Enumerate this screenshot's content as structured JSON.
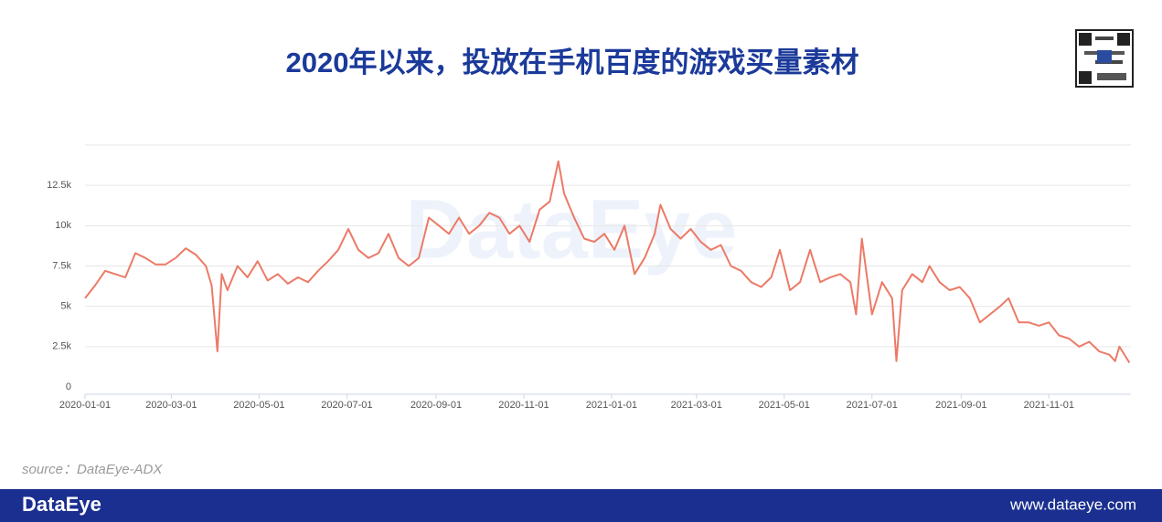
{
  "chart_data": {
    "type": "line",
    "title": "2020年以来，投放在手机百度的游戏买量素材",
    "watermark": "DataEye",
    "color": "#ec7a67",
    "x": [
      "2020-01-01",
      "2020-01-08",
      "2020-01-15",
      "2020-01-22",
      "2020-01-29",
      "2020-02-05",
      "2020-02-12",
      "2020-02-19",
      "2020-02-26",
      "2020-03-04",
      "2020-03-11",
      "2020-03-18",
      "2020-03-25",
      "2020-03-29",
      "2020-04-02",
      "2020-04-05",
      "2020-04-09",
      "2020-04-16",
      "2020-04-23",
      "2020-04-30",
      "2020-05-07",
      "2020-05-14",
      "2020-05-21",
      "2020-05-28",
      "2020-06-04",
      "2020-06-11",
      "2020-06-18",
      "2020-06-25",
      "2020-07-02",
      "2020-07-09",
      "2020-07-16",
      "2020-07-23",
      "2020-07-30",
      "2020-08-06",
      "2020-08-13",
      "2020-08-20",
      "2020-08-27",
      "2020-09-03",
      "2020-09-10",
      "2020-09-17",
      "2020-09-24",
      "2020-10-01",
      "2020-10-08",
      "2020-10-15",
      "2020-10-22",
      "2020-10-29",
      "2020-11-05",
      "2020-11-12",
      "2020-11-19",
      "2020-11-25",
      "2020-11-29",
      "2020-12-06",
      "2020-12-13",
      "2020-12-20",
      "2020-12-27",
      "2021-01-03",
      "2021-01-10",
      "2021-01-17",
      "2021-01-24",
      "2021-01-31",
      "2021-02-04",
      "2021-02-11",
      "2021-02-18",
      "2021-02-25",
      "2021-03-04",
      "2021-03-11",
      "2021-03-18",
      "2021-03-25",
      "2021-04-01",
      "2021-04-08",
      "2021-04-15",
      "2021-04-22",
      "2021-04-28",
      "2021-05-05",
      "2021-05-12",
      "2021-05-19",
      "2021-05-26",
      "2021-06-02",
      "2021-06-09",
      "2021-06-16",
      "2021-06-20",
      "2021-06-24",
      "2021-07-01",
      "2021-07-08",
      "2021-07-15",
      "2021-07-18",
      "2021-07-22",
      "2021-07-29",
      "2021-08-05",
      "2021-08-10",
      "2021-08-17",
      "2021-08-24",
      "2021-08-31",
      "2021-09-07",
      "2021-09-14",
      "2021-09-21",
      "2021-09-28",
      "2021-10-04",
      "2021-10-11",
      "2021-10-18",
      "2021-10-25",
      "2021-11-01",
      "2021-11-08",
      "2021-11-15",
      "2021-11-22",
      "2021-11-29",
      "2021-12-06",
      "2021-12-13",
      "2021-12-17",
      "2021-12-20",
      "2021-12-27"
    ],
    "values": [
      5500,
      6300,
      7200,
      7000,
      6800,
      8300,
      8000,
      7600,
      7600,
      8000,
      8600,
      8200,
      7500,
      6300,
      2200,
      7000,
      6000,
      7500,
      6800,
      7800,
      6600,
      7000,
      6400,
      6800,
      6500,
      7200,
      7800,
      8500,
      9800,
      8500,
      8000,
      8300,
      9500,
      8000,
      7500,
      8000,
      10500,
      10000,
      9500,
      10500,
      9500,
      10000,
      10800,
      10500,
      9500,
      10000,
      9000,
      11000,
      11500,
      14000,
      12000,
      10500,
      9200,
      9000,
      9500,
      8500,
      10000,
      7000,
      8000,
      9500,
      11300,
      9800,
      9200,
      9800,
      9000,
      8500,
      8800,
      7500,
      7200,
      6500,
      6200,
      6800,
      8500,
      6000,
      6500,
      8500,
      6500,
      6800,
      7000,
      6500,
      4500,
      9200,
      4500,
      6500,
      5500,
      1600,
      6000,
      7000,
      6500,
      7500,
      6500,
      6000,
      6200,
      5500,
      4000,
      4500,
      5000,
      5500,
      4000,
      4000,
      3800,
      4000,
      3200,
      3000,
      2500,
      2800,
      2200,
      2000,
      1600,
      2500,
      1500
    ],
    "xlim": [
      "2020-01-01",
      "2021-12-28"
    ],
    "xticks": [
      "2020-01-01",
      "2020-03-01",
      "2020-05-01",
      "2020-07-01",
      "2020-09-01",
      "2020-11-01",
      "2021-01-01",
      "2021-03-01",
      "2021-05-01",
      "2021-07-01",
      "2021-09-01",
      "2021-11-01"
    ],
    "ylim": [
      0,
      15000
    ],
    "yticks": [
      0,
      {
        "value": 2500,
        "label": "2.5k"
      },
      {
        "value": 5000,
        "label": "5k"
      },
      {
        "value": 7500,
        "label": "7.5k"
      },
      {
        "value": 10000,
        "label": "10k"
      },
      {
        "value": 12500,
        "label": "12.5k"
      }
    ],
    "grid": true
  },
  "source": "source：DataEye-ADX",
  "footer": {
    "brand": "DataEye",
    "url": "www.dataeye.com"
  }
}
